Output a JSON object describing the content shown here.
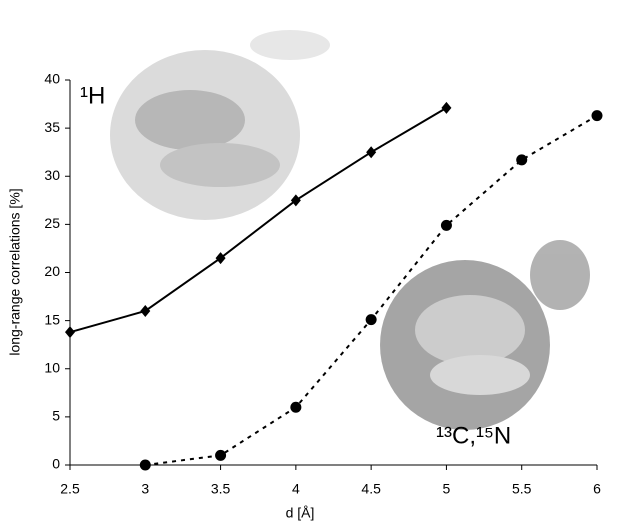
{
  "chart_data": {
    "type": "line",
    "x_label": "d [Å]",
    "y_label": "long-range correlations [%]",
    "xlim": [
      2.5,
      6
    ],
    "xticks": [
      2.5,
      3,
      3.5,
      4,
      4.5,
      5,
      5.5,
      6
    ],
    "ylim": [
      0,
      40
    ],
    "yticks": [
      0,
      5,
      10,
      15,
      20,
      25,
      30,
      35,
      40
    ],
    "grid": false,
    "series": [
      {
        "name": "¹H",
        "color": "#000000",
        "marker": "diamond",
        "dashed": false,
        "x": [
          2.5,
          3,
          3.5,
          4,
          4.5,
          5
        ],
        "values": [
          13.8,
          16.0,
          21.5,
          27.5,
          32.5,
          37.1
        ]
      },
      {
        "name": "¹³C,¹⁵N",
        "color": "#000000",
        "marker": "circle",
        "dashed": true,
        "x": [
          3,
          3.5,
          4,
          4.5,
          5,
          5.5,
          6
        ],
        "values": [
          0,
          1.0,
          6.0,
          15.1,
          24.9,
          31.7,
          36.3
        ]
      }
    ]
  }
}
